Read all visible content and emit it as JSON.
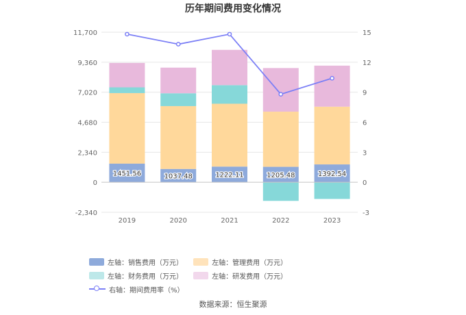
{
  "chart_data": {
    "type": "bar",
    "title": "历年期间费用变化情况",
    "categories": [
      "2019",
      "2020",
      "2021",
      "2022",
      "2023"
    ],
    "series": [
      {
        "name": "左轴：销售费用（万元）",
        "axis": "left",
        "color": "#8eaadb",
        "values": [
          1451.56,
          1037.48,
          1222.11,
          1205.48,
          1392.54
        ],
        "labels": [
          "1451.56",
          "1037.48",
          "1222.11",
          "1205.48",
          "1392.54"
        ]
      },
      {
        "name": "左轴：管理费用（万元）",
        "axis": "left",
        "color": "#ffd89b",
        "values": [
          5500,
          4900,
          4900,
          4300,
          4500
        ]
      },
      {
        "name": "左轴：财务费用（万元）",
        "axis": "left",
        "color": "#86d8d9",
        "values": [
          450,
          1000,
          1450,
          -1450,
          -1300
        ]
      },
      {
        "name": "左轴：研发费用（万元）",
        "axis": "left",
        "color": "#e8b9dc",
        "values": [
          1900,
          2000,
          2750,
          3400,
          3200
        ]
      },
      {
        "name": "右轴：期间费用率（%）",
        "axis": "right",
        "type": "line",
        "color": "#7b7ff6",
        "values": [
          14.8,
          13.8,
          14.8,
          8.8,
          10.4
        ]
      }
    ],
    "left_axis": {
      "min": -2340,
      "max": 11700,
      "ticks": [
        "-2,340",
        "0",
        "2,340",
        "4,680",
        "7,020",
        "9,360",
        "11,700"
      ]
    },
    "right_axis": {
      "min": -3,
      "max": 15,
      "ticks": [
        "-3",
        "0",
        "3",
        "6",
        "9",
        "12",
        "15"
      ]
    },
    "grid": true,
    "legend_position": "bottom"
  },
  "source": "数据来源：恒生聚源"
}
